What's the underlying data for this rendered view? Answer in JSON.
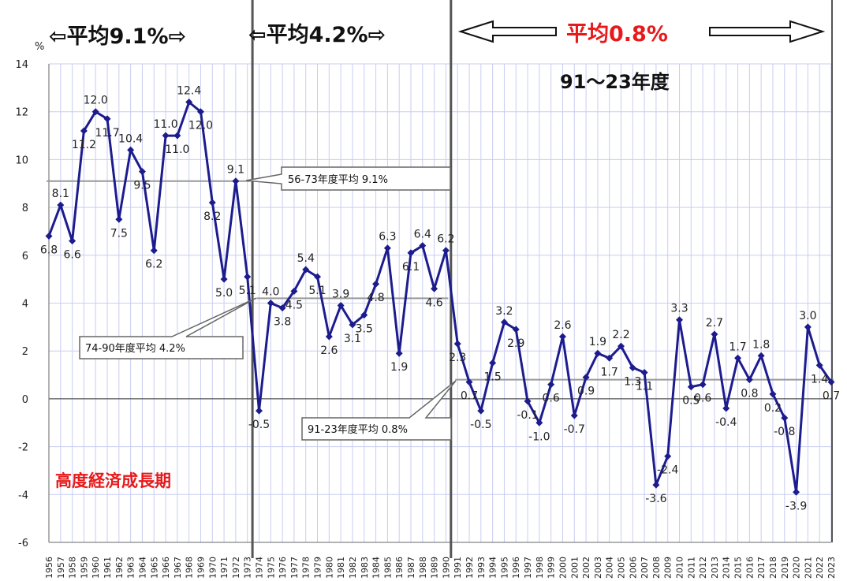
{
  "chart_data": {
    "type": "line",
    "y_unit": "%",
    "ylim": [
      -6,
      14
    ],
    "y_ticks": [
      -6,
      -4,
      -2,
      0,
      2,
      4,
      6,
      8,
      10,
      12,
      14
    ],
    "x": [
      "1956",
      "1957",
      "1958",
      "1959",
      "1960",
      "1961",
      "1962",
      "1963",
      "1964",
      "1965",
      "1966",
      "1967",
      "1968",
      "1969",
      "1970",
      "1971",
      "1972",
      "1973",
      "1974",
      "1975",
      "1976",
      "1977",
      "1978",
      "1979",
      "1980",
      "1981",
      "1982",
      "1983",
      "1984",
      "1985",
      "1986",
      "1987",
      "1988",
      "1989",
      "1990",
      "1991",
      "1992",
      "1993",
      "1994",
      "1995",
      "1996",
      "1997",
      "1998",
      "1999",
      "2000",
      "2001",
      "2002",
      "2003",
      "2004",
      "2005",
      "2006",
      "2007",
      "2008",
      "2009",
      "2010",
      "2011",
      "2012",
      "2013",
      "2014",
      "2015",
      "2016",
      "2017",
      "2018",
      "2019",
      "2020",
      "2021",
      "2022",
      "2023"
    ],
    "series": [
      {
        "values": [
          6.8,
          8.1,
          6.6,
          11.2,
          12.0,
          11.7,
          7.5,
          10.4,
          9.5,
          6.2,
          11.0,
          11.0,
          12.4,
          12.0,
          8.2,
          5.0,
          9.1,
          5.1,
          -0.5,
          4.0,
          3.8,
          4.5,
          5.4,
          5.1,
          2.6,
          3.9,
          3.1,
          3.5,
          4.8,
          6.3,
          1.9,
          6.1,
          6.4,
          4.6,
          6.2,
          2.3,
          0.7,
          -0.5,
          1.5,
          3.2,
          2.9,
          -0.1,
          -1.0,
          0.6,
          2.6,
          -0.7,
          0.9,
          1.9,
          1.7,
          2.2,
          1.3,
          1.1,
          -3.6,
          -2.4,
          3.3,
          0.5,
          0.6,
          2.7,
          -0.4,
          1.7,
          0.8,
          1.8,
          0.2,
          -0.8,
          -3.9,
          3.0,
          1.4,
          0.7
        ],
        "labels": [
          "6.8",
          "8.1",
          "6.6",
          "11.2",
          "12.0",
          "11.7",
          "7.5",
          "10.4",
          "9.5",
          "6.2",
          "11.0",
          "11.0",
          "12.4",
          "12.0",
          "8.2",
          "5.0",
          "9.1",
          "5.1",
          "-0.5",
          "4.0",
          "3.8",
          "4.5",
          "5.4",
          "5.1",
          "2.6",
          "3.9",
          "3.1",
          "3.5",
          "4.8",
          "6.3",
          "1.9",
          "6.1",
          "6.4",
          "4.6",
          "6.2",
          "2.3",
          "0.7",
          "-0.5",
          "1.5",
          "3.2",
          "2.9",
          "-0.1",
          "-1.0",
          "0.6",
          "2.6",
          "-0.7",
          "0.9",
          "1.9",
          "1.7",
          "2.2",
          "1.3",
          "1.1",
          "-3.6",
          "-2.4",
          "3.3",
          "0.5",
          "0.6",
          "2.7",
          "-0.4",
          "1.7",
          "0.8",
          "1.8",
          "0.2",
          "-0.8",
          "-3.9",
          "3.0",
          "1.4",
          "0.7"
        ],
        "color": "#1c1c8f"
      }
    ],
    "averages": [
      {
        "from": "1956",
        "to": "1973",
        "value": 9.1,
        "label": "56-73年度平均 9.1%"
      },
      {
        "from": "1974",
        "to": "1990",
        "value": 4.2,
        "label": "74-90年度平均 4.2%"
      },
      {
        "from": "1991",
        "to": "2023",
        "value": 0.8,
        "label": "91-23年度平均 0.8%"
      }
    ],
    "grid": true,
    "dividers_after": [
      "1973",
      "1990"
    ]
  },
  "header": {
    "left_arrow": "⇦平均9.1%⇨",
    "mid_arrow": "⇦平均4.2%⇨",
    "right_label": "平均0.8%",
    "period_label": "91～23年度",
    "era_label": "高度経済成長期"
  },
  "colors": {
    "line": "#1c1c8f",
    "average": "#999999",
    "grid": "#c9cdf2",
    "red": "#e8191b"
  }
}
